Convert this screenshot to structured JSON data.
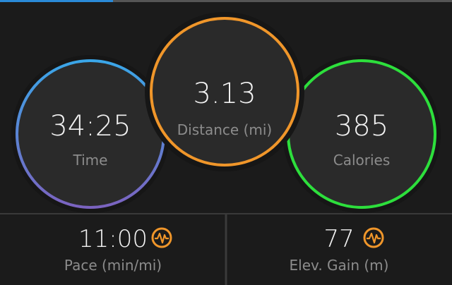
{
  "stats": [
    {
      "value": "34:25",
      "label": "Time"
    },
    {
      "value": "3.13",
      "label": "Distance (mi)"
    },
    {
      "value": "385",
      "label": "Calories"
    }
  ],
  "details": [
    {
      "value": "11:00",
      "label": "Pace (min/mi)"
    },
    {
      "value": "77",
      "label": "Elev. Gain (m)"
    }
  ]
}
